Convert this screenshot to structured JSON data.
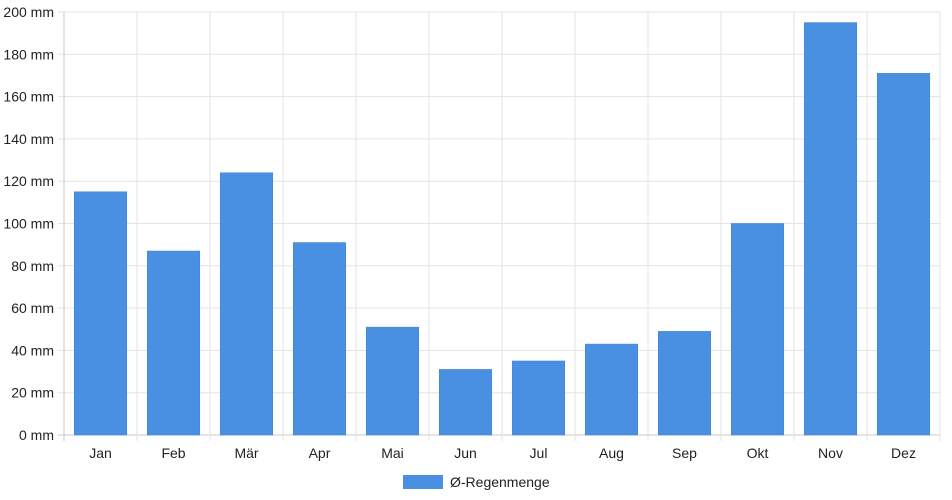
{
  "chart_data": {
    "type": "bar",
    "categories": [
      "Jan",
      "Feb",
      "Mär",
      "Apr",
      "Mai",
      "Jun",
      "Jul",
      "Aug",
      "Sep",
      "Okt",
      "Nov",
      "Dez"
    ],
    "series": [
      {
        "name": "Ø-Regenmenge",
        "values": [
          115,
          87,
          124,
          91,
          51,
          31,
          35,
          43,
          49,
          100,
          195,
          171
        ],
        "color": "#4a90e2"
      }
    ],
    "y_ticks": [
      "0 mm",
      "20 mm",
      "40 mm",
      "60 mm",
      "80 mm",
      "100 mm",
      "120 mm",
      "140 mm",
      "160 mm",
      "180 mm",
      "200 mm"
    ],
    "ylim": [
      0,
      200
    ],
    "grid": true,
    "legend_position": "bottom-center"
  }
}
